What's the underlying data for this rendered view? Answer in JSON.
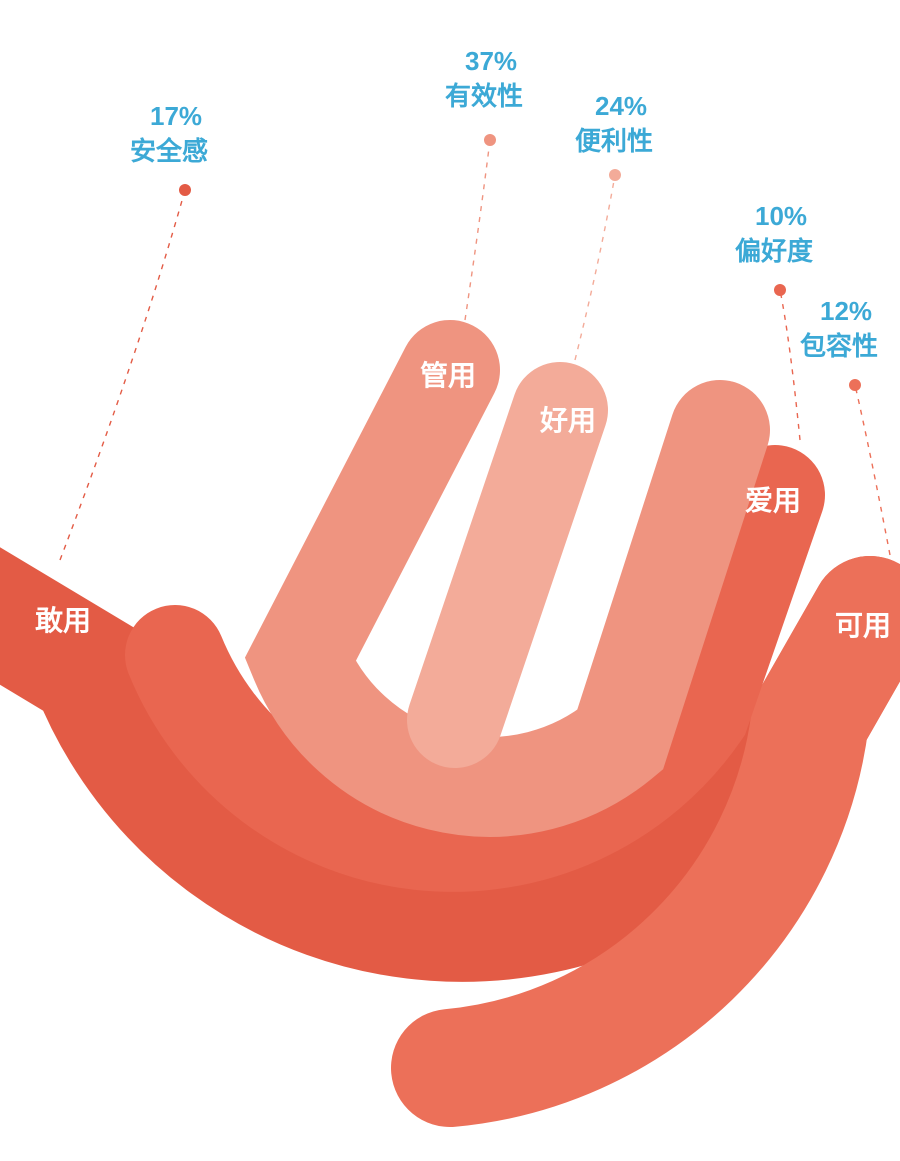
{
  "diagram": {
    "type": "infographic",
    "style": "hand-fan",
    "background_color": "#ffffff",
    "label_text_color": "#3ca9d6",
    "finger_text_color": "#ffffff",
    "stroke_dash": "5,6",
    "dot_radius": 6,
    "label_font_size_pt": 20,
    "finger_font_size_pt": 21,
    "segments": [
      {
        "id": "thumb",
        "percent_label": "17%",
        "category_label": "安全感",
        "finger_label": "敢用",
        "color": "#e35b45",
        "dot_color": "#e35b45"
      },
      {
        "id": "index",
        "percent_label": "37%",
        "category_label": "有效性",
        "finger_label": "管用",
        "color": "#ef9480",
        "dot_color": "#ef9480"
      },
      {
        "id": "middle",
        "percent_label": "24%",
        "category_label": "便利性",
        "finger_label": "好用",
        "color": "#f3ab99",
        "dot_color": "#f3ab99"
      },
      {
        "id": "ring",
        "percent_label": "10%",
        "category_label": "偏好度",
        "finger_label": "爱用",
        "color": "#e96650",
        "dot_color": "#e96650"
      },
      {
        "id": "pinky",
        "percent_label": "12%",
        "category_label": "包容性",
        "finger_label": "可用",
        "color": "#ec7059",
        "dot_color": "#ec7059"
      }
    ]
  }
}
